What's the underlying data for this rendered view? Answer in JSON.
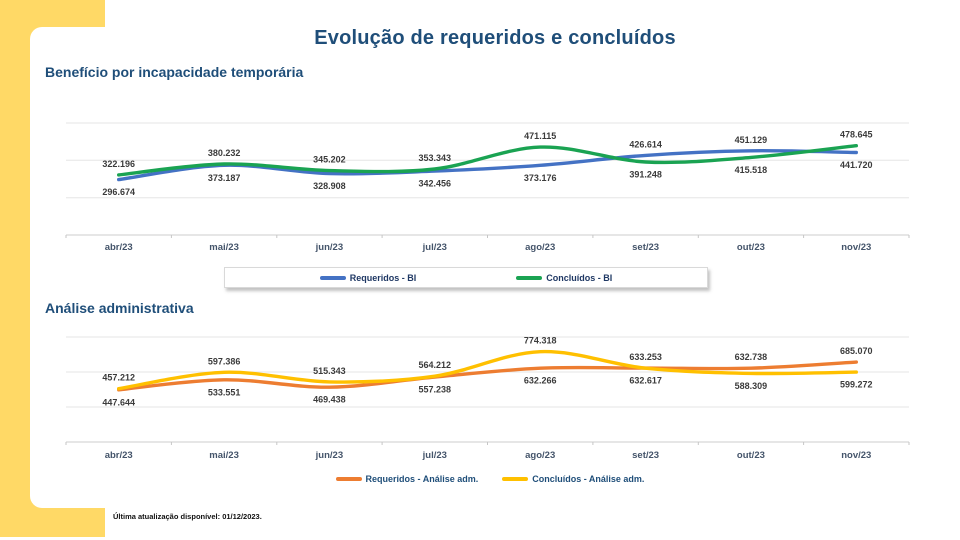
{
  "page": {
    "title": "Evolução de requeridos e concluídos",
    "footer": "Última atualização disponível:  01/12/2023.",
    "accent_yellow": "#FFD966",
    "heading_color": "#1F4E79"
  },
  "chart_data": [
    {
      "type": "line",
      "section_title": "Benefício por incapacidade temporária",
      "categories": [
        "abr/23",
        "mai/23",
        "jun/23",
        "jul/23",
        "ago/23",
        "set/23",
        "out/23",
        "nov/23"
      ],
      "series": [
        {
          "name": "Requeridos - BI",
          "color": "#4472C4",
          "values": [
            296674,
            373187,
            328908,
            342456,
            373176,
            426614,
            451129,
            441720
          ],
          "labels": [
            "296.674",
            "373.187",
            "328.908",
            "342.456",
            "373.176",
            "426.614",
            "451.129",
            "441.720"
          ]
        },
        {
          "name": "Concluídos - BI",
          "color": "#1AA352",
          "values": [
            322196,
            380232,
            345202,
            353343,
            471115,
            391248,
            415518,
            478645
          ],
          "labels": [
            "322.196",
            "380.232",
            "345.202",
            "353.343",
            "471.115",
            "391.248",
            "415.518",
            "478.645"
          ]
        }
      ],
      "xlabel": "",
      "ylabel": "",
      "ylim": [
        0,
        600000
      ],
      "grid_step": 200000,
      "grid": true,
      "legend_position": "bottom-boxed",
      "smooth_lines": true
    },
    {
      "type": "line",
      "section_title": "Análise administrativa",
      "categories": [
        "abr/23",
        "mai/23",
        "jun/23",
        "jul/23",
        "ago/23",
        "set/23",
        "out/23",
        "nov/23"
      ],
      "series": [
        {
          "name": "Requeridos - Análise adm.",
          "color": "#ED7D31",
          "values": [
            447644,
            533551,
            469438,
            557238,
            632266,
            633253,
            632738,
            685070
          ],
          "labels": [
            "447.644",
            "533.551",
            "469.438",
            "557.238",
            "632.266",
            "633.253",
            "632.738",
            "685.070"
          ]
        },
        {
          "name": "Concluídos - Análise adm.",
          "color": "#FFC000",
          "values": [
            457212,
            597386,
            515343,
            564212,
            774318,
            632617,
            588309,
            599272
          ],
          "labels": [
            "457.212",
            "597.386",
            "515.343",
            "564.212",
            "774.318",
            "632.617",
            "588.309",
            "599.272"
          ]
        }
      ],
      "xlabel": "",
      "ylabel": "",
      "ylim": [
        0,
        900000
      ],
      "grid_step": 300000,
      "grid": true,
      "legend_position": "bottom-plain",
      "smooth_lines": true
    }
  ]
}
